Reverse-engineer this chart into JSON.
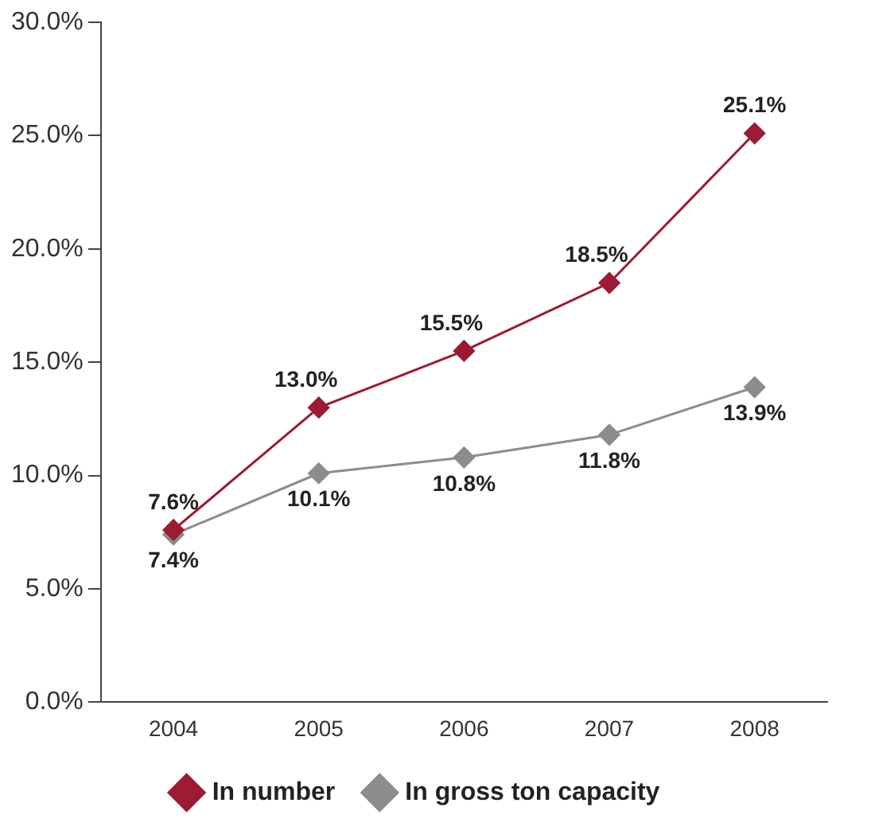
{
  "chart_data": {
    "type": "line",
    "categories": [
      "2004",
      "2005",
      "2006",
      "2007",
      "2008"
    ],
    "series": [
      {
        "name": "In number",
        "color": "#9b1b33",
        "values": [
          7.6,
          13.0,
          15.5,
          18.5,
          25.1
        ],
        "value_labels": [
          "7.6%",
          "13.0%",
          "15.5%",
          "18.5%",
          "25.1%"
        ]
      },
      {
        "name": "In gross ton capacity",
        "color": "#8c8c8c",
        "values": [
          7.4,
          10.1,
          10.8,
          11.8,
          13.9
        ],
        "value_labels": [
          "7.4%",
          "10.1%",
          "10.8%",
          "11.8%",
          "13.9%"
        ]
      }
    ],
    "ylim": [
      0,
      30
    ],
    "yticks": [
      {
        "value": 0,
        "label": "0.0%"
      },
      {
        "value": 5,
        "label": "5.0%"
      },
      {
        "value": 10,
        "label": "10.0%"
      },
      {
        "value": 15,
        "label": "15.0%"
      },
      {
        "value": 20,
        "label": "20.0%"
      },
      {
        "value": 25,
        "label": "25.0%"
      },
      {
        "value": 30,
        "label": "30.0%"
      }
    ],
    "grid": false,
    "legend": "bottom",
    "marker": "diamond",
    "line_style": "solid"
  }
}
